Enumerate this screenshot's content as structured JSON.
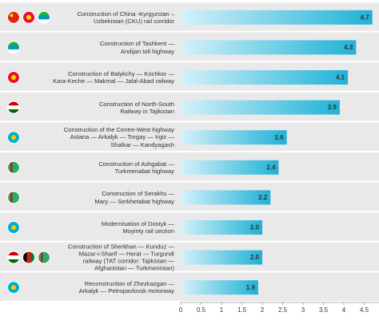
{
  "chart_data": {
    "type": "bar",
    "orientation": "horizontal",
    "categories": [
      "Construction of China -Kyrgyzstan –\nUzbekistan (CKU) rail corridor",
      "Construction of Tashkent —\nAndijan toll highway",
      "Construction of Balykchy — Kochkor —\nKara-Keche — Makmal — Jalal-Abad railway",
      "Construction of North-South\nRailway in Tajikistan",
      "Construction of the Centre-West highway\nAstana — Arkalyk — Torgay — Irgiz —\nShalkar — Kandyagash",
      "Construction of Ashgabat —\nTurkmenabat highway",
      "Construction of Serakhs —\nMary — Serkhetabat highway",
      "Modernisation of Dostyk —\nMoyinty rail section",
      "Construction of Sherkhan — Kunduz —\nMazar-i-Sharif — Herat — Turgundi\nrailway (TAT corridor: Tajikistan —\nAfghanistan — Turkmenistan)",
      "Reconstruction of Zhezkazgan —\nArkalyk — Petropavlovsk motorway"
    ],
    "values": [
      4.7,
      4.3,
      4.1,
      3.9,
      2.6,
      2.4,
      2.2,
      2.0,
      2.0,
      1.9
    ],
    "value_labels": [
      "4.7",
      "4.3",
      "4.1",
      "3.9",
      "2.6",
      "2.4",
      "2.2",
      "2.0",
      "2.0",
      "1.9"
    ],
    "color": "#29b6d8",
    "xlim": [
      0,
      4.5
    ],
    "xticks": [
      0,
      0.5,
      1,
      1.5,
      2,
      2.5,
      3,
      3.5,
      4,
      4.5
    ]
  }
}
